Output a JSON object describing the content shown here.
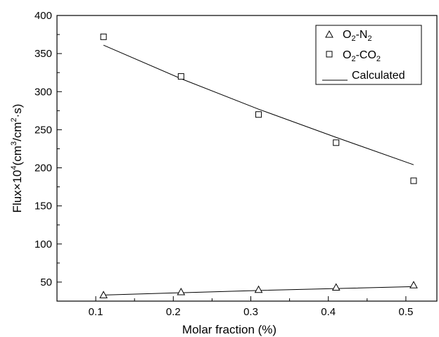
{
  "chart_data": {
    "type": "scatter",
    "xlabel": "Molar fraction (%)",
    "ylabel_parts": {
      "a": "Flux×10",
      "sup1": "4",
      "b": "(cm",
      "sup2": "3",
      "c": "/cm",
      "sup3": "2",
      "d": "·s)"
    },
    "xlim": [
      0.05,
      0.54
    ],
    "ylim": [
      25,
      400
    ],
    "x_ticks": [
      0.1,
      0.2,
      0.3,
      0.4,
      0.5
    ],
    "x_tick_labels": [
      "0.1",
      "0.2",
      "0.3",
      "0.4",
      "0.5"
    ],
    "y_ticks": [
      50,
      100,
      150,
      200,
      250,
      300,
      350,
      400
    ],
    "y_tick_labels": [
      "50",
      "100",
      "150",
      "200",
      "250",
      "300",
      "350",
      "400"
    ],
    "grid": false,
    "legend_position": "top-right",
    "series": [
      {
        "legend": {
          "main": "O",
          "sub1": "2",
          "mid": "-N",
          "sub2": "2"
        },
        "marker": "triangle",
        "x": [
          0.11,
          0.21,
          0.31,
          0.41,
          0.51
        ],
        "y": [
          33,
          37,
          40,
          43,
          46
        ]
      },
      {
        "legend": {
          "main": "O",
          "sub1": "2",
          "mid": "-CO",
          "sub2": "2"
        },
        "marker": "square",
        "x": [
          0.11,
          0.21,
          0.31,
          0.41,
          0.51
        ],
        "y": [
          372,
          320,
          270,
          233,
          183
        ]
      }
    ],
    "calculated": {
      "legend": "Calculated",
      "lines": [
        {
          "x": [
            0.11,
            0.21,
            0.31,
            0.41,
            0.51
          ],
          "y": [
            33,
            36,
            39,
            41.5,
            44
          ]
        },
        {
          "x": [
            0.11,
            0.21,
            0.31,
            0.41,
            0.51
          ],
          "y": [
            361,
            317,
            277,
            240,
            204
          ]
        }
      ]
    }
  }
}
